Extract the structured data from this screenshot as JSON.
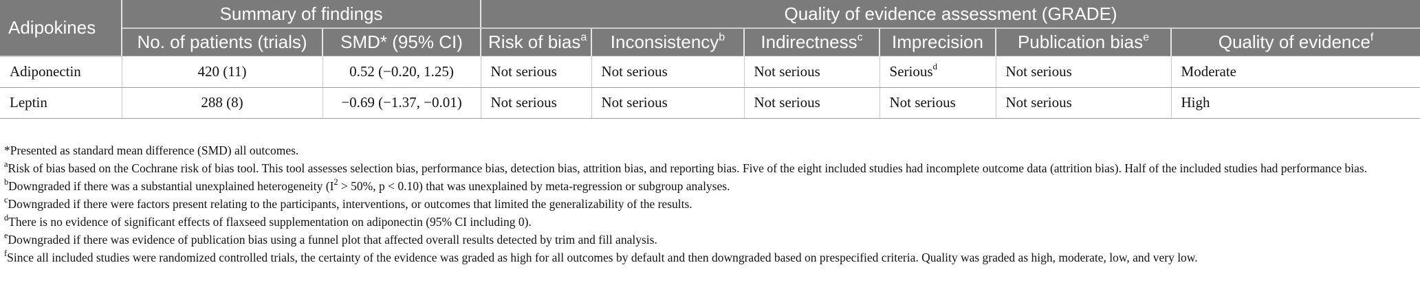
{
  "headers": {
    "adipokines": "Adipokines",
    "summary": "Summary of findings",
    "quality_assessment": "Quality of evidence assessment (GRADE)",
    "no_patients": "No. of patients (trials)",
    "smd": "SMD* (95% CI)",
    "risk_of_bias": "Risk of bias",
    "risk_of_bias_sup": "a",
    "inconsistency": "Inconsistency",
    "inconsistency_sup": "b",
    "indirectness": "Indirectness",
    "indirectness_sup": "c",
    "imprecision": "Imprecision",
    "publication_bias": "Publication bias",
    "publication_bias_sup": "e",
    "quality_of_evidence": "Quality of evidence",
    "quality_of_evidence_sup": "f"
  },
  "rows": [
    {
      "adipokine": "Adiponectin",
      "patients": "420 (11)",
      "smd": "0.52 (−0.20, 1.25)",
      "risk_of_bias": "Not serious",
      "inconsistency": "Not serious",
      "indirectness": "Not serious",
      "imprecision": "Serious",
      "imprecision_sup": "d",
      "publication_bias": "Not serious",
      "quality": "Moderate"
    },
    {
      "adipokine": "Leptin",
      "patients": "288 (8)",
      "smd": "−0.69 (−1.37, −0.01)",
      "risk_of_bias": "Not serious",
      "inconsistency": "Not serious",
      "indirectness": "Not serious",
      "imprecision": "Not serious",
      "imprecision_sup": "",
      "publication_bias": "Not serious",
      "quality": "High"
    }
  ],
  "footnotes": {
    "star": {
      "mark": "*",
      "text": "Presented as standard mean difference (SMD) all outcomes."
    },
    "a": {
      "mark": "a",
      "text": "Risk of bias based on the Cochrane risk of bias tool. This tool assesses selection bias, performance bias, detection bias, attrition bias, and reporting bias. Five of the eight included studies had incomplete outcome data (attrition bias). Half of the included studies had performance bias."
    },
    "b": {
      "mark": "b",
      "text_before": "Downgraded if there was a substantial unexplained heterogeneity (I",
      "sup2": "2",
      "text_after": " > 50%, p < 0.10) that was unexplained by meta-regression or subgroup analyses."
    },
    "c": {
      "mark": "c",
      "text": "Downgraded if there were factors present relating to the participants, interventions, or outcomes that limited the generalizability of the results."
    },
    "d": {
      "mark": "d",
      "text": "There is no evidence of significant effects of flaxseed supplementation on adiponectin (95% CI including 0)."
    },
    "e": {
      "mark": "e",
      "text": "Downgraded if there was evidence of publication bias using a funnel plot that affected overall results detected by trim and fill analysis."
    },
    "f": {
      "mark": "f",
      "text": "Since all included studies were randomized controlled trials, the certainty of the evidence was graded as high for all outcomes by default and then downgraded based on prespecified criteria. Quality was graded as high, moderate, low, and very low."
    }
  }
}
